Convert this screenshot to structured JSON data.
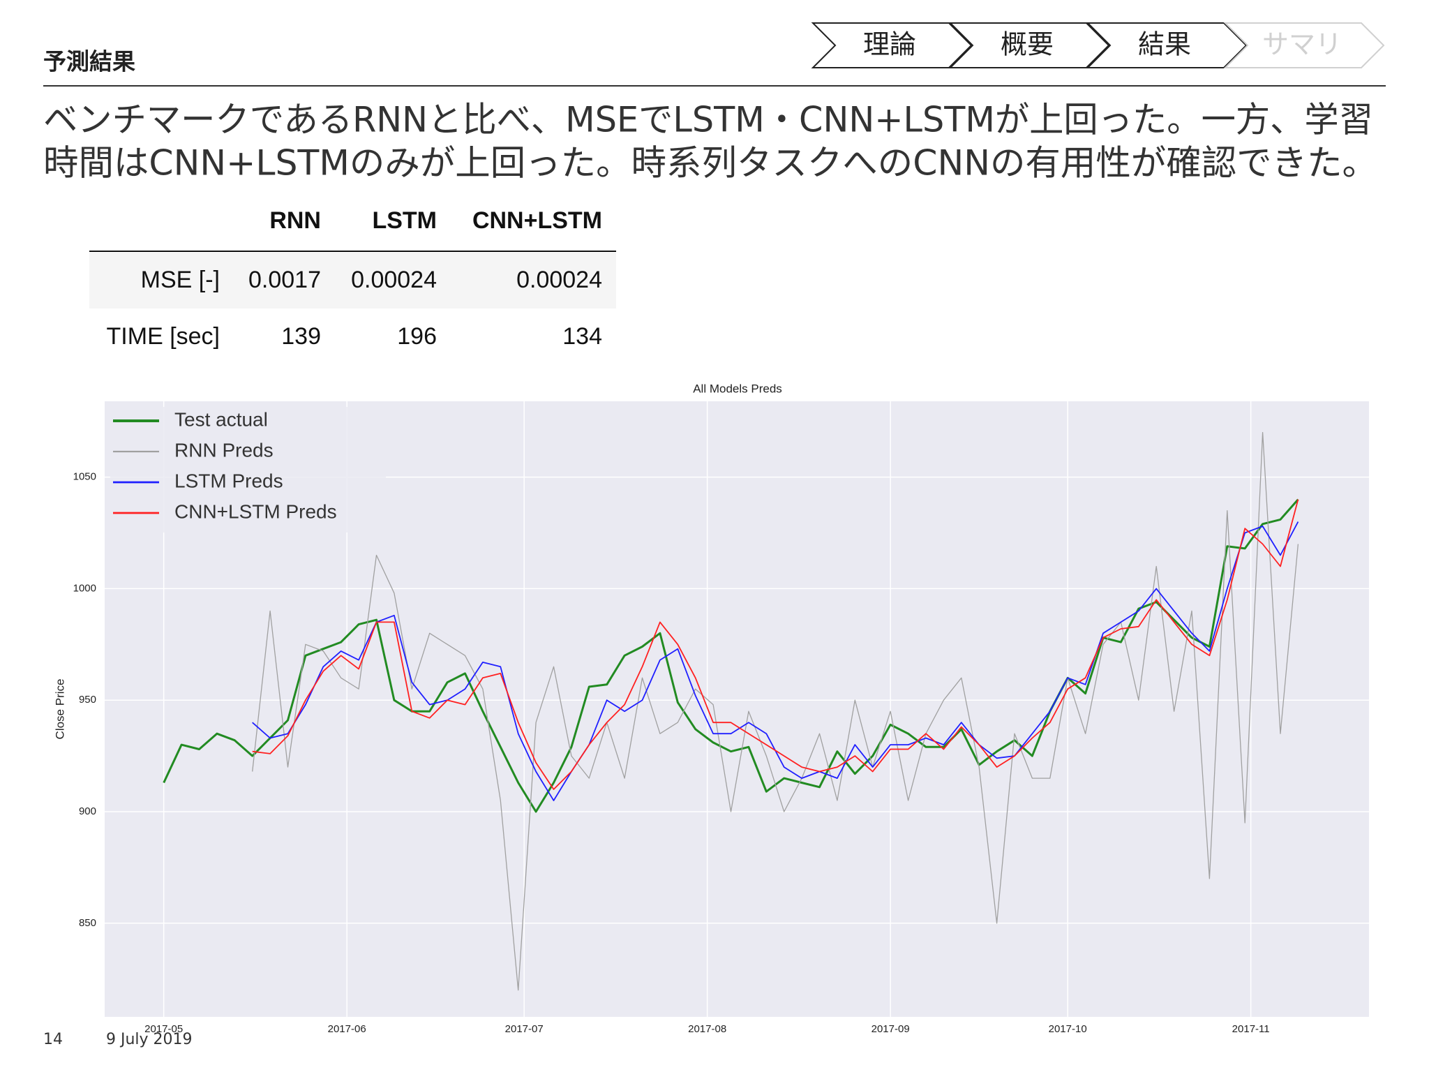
{
  "header": {
    "title": "予測結果",
    "nav": [
      "理論",
      "概要",
      "結果",
      "サマリ"
    ]
  },
  "body": {
    "lines": [
      "ベンチマークであるRNNと比べ、MSEでLSTM・CNN+LSTMが上回った。一方、学習",
      "時間はCNN+LSTMのみが上回った。時系列タスクへのCNNの有用性が確認できた。"
    ]
  },
  "table": {
    "header": [
      "RNN",
      "LSTM",
      "CNN+LSTM"
    ],
    "rows": [
      [
        "MSE [-]",
        "0.0017",
        "0.00024",
        "0.00024"
      ],
      [
        "TIME [sec]",
        "139",
        "196",
        "134"
      ]
    ]
  },
  "chart_data": {
    "type": "line",
    "title": "All Models Preds",
    "y_label": "Close Price",
    "xlim": [
      -10,
      204
    ],
    "ylim": [
      808,
      1084
    ],
    "grid": true,
    "legend": "upper left",
    "xticks": [
      {
        "value": 0,
        "label": "2017-05"
      },
      {
        "value": 31,
        "label": "2017-06"
      },
      {
        "value": 61,
        "label": "2017-07"
      },
      {
        "value": 92,
        "label": "2017-08"
      },
      {
        "value": 123,
        "label": "2017-09"
      },
      {
        "value": 153,
        "label": "2017-10"
      },
      {
        "value": 184,
        "label": "2017-11"
      }
    ],
    "yticks": [
      850,
      900,
      950,
      1000,
      1050
    ],
    "x": [
      0,
      3,
      6,
      9,
      12,
      15,
      18,
      21,
      24,
      27,
      30,
      33,
      36,
      39,
      42,
      45,
      48,
      51,
      54,
      57,
      60,
      63,
      66,
      69,
      72,
      75,
      78,
      81,
      84,
      87,
      90,
      93,
      96,
      99,
      102,
      105,
      108,
      111,
      114,
      117,
      120,
      123,
      126,
      129,
      132,
      135,
      138,
      141,
      144,
      147,
      150,
      153,
      156,
      159,
      162,
      165,
      168,
      171,
      174,
      177,
      180,
      183,
      186,
      189,
      192
    ],
    "series": [
      {
        "name": "Test actual",
        "color": "#228b22",
        "width": 3,
        "values": [
          913,
          930,
          928,
          935,
          932,
          925,
          933,
          941,
          970,
          973,
          976,
          984,
          986,
          950,
          945,
          945,
          958,
          962,
          945,
          929,
          913,
          900,
          913,
          929,
          956,
          957,
          970,
          974,
          980,
          949,
          937,
          931,
          927,
          929,
          909,
          915,
          913,
          911,
          927,
          917,
          925,
          939,
          935,
          929,
          929,
          937,
          921,
          927,
          932,
          925,
          945,
          960,
          953,
          978,
          976,
          991,
          994,
          986,
          978,
          974,
          1019,
          1018,
          1029,
          1031,
          1040
        ]
      },
      {
        "name": "RNN Preds",
        "color": "#a0a0a0",
        "width": 1.3,
        "values": [
          null,
          null,
          null,
          null,
          null,
          918,
          990,
          920,
          975,
          972,
          960,
          955,
          1015,
          998,
          955,
          980,
          975,
          970,
          955,
          905,
          820,
          940,
          965,
          925,
          915,
          940,
          915,
          960,
          935,
          940,
          955,
          948,
          900,
          945,
          925,
          900,
          915,
          935,
          905,
          950,
          920,
          945,
          905,
          935,
          950,
          960,
          920,
          850,
          935,
          915,
          915,
          960,
          935,
          975,
          985,
          950,
          1010,
          945,
          990,
          870,
          1035,
          895,
          1070,
          935,
          1020
        ]
      },
      {
        "name": "LSTM Preds",
        "color": "#1f1fff",
        "width": 1.8,
        "values": [
          null,
          null,
          null,
          null,
          null,
          940,
          933,
          935,
          948,
          965,
          972,
          968,
          985,
          988,
          958,
          948,
          950,
          955,
          967,
          965,
          935,
          918,
          905,
          918,
          930,
          950,
          945,
          950,
          968,
          973,
          952,
          935,
          935,
          940,
          935,
          920,
          915,
          918,
          915,
          930,
          920,
          930,
          930,
          933,
          930,
          940,
          930,
          924,
          925,
          935,
          945,
          960,
          957,
          980,
          985,
          990,
          1000,
          990,
          980,
          972,
          1000,
          1025,
          1028,
          1015,
          1030
        ]
      },
      {
        "name": "CNN+LSTM Preds",
        "color": "#ff2020",
        "width": 1.8,
        "values": [
          null,
          null,
          null,
          null,
          null,
          927,
          926,
          934,
          950,
          963,
          970,
          964,
          985,
          985,
          945,
          942,
          950,
          948,
          960,
          962,
          940,
          922,
          910,
          918,
          930,
          940,
          948,
          965,
          985,
          975,
          960,
          940,
          940,
          935,
          930,
          925,
          920,
          918,
          920,
          925,
          918,
          928,
          928,
          935,
          928,
          938,
          930,
          920,
          925,
          933,
          940,
          955,
          960,
          978,
          982,
          983,
          995,
          985,
          975,
          970,
          995,
          1027,
          1020,
          1010,
          1040
        ]
      }
    ]
  },
  "footer": {
    "page": "14",
    "date": "9 July 2019"
  }
}
